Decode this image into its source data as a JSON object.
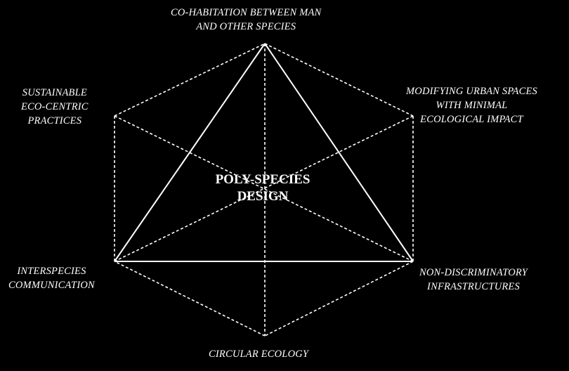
{
  "colors": {
    "background": "#000000",
    "lines": "#ffffff",
    "text": "#ffffff"
  },
  "center": {
    "line1": "POLY-SPECIES",
    "line2": "DESIGN"
  },
  "nodes": {
    "top": {
      "line1": "CO-HABITATION BETWEEN MAN",
      "line2": "AND OTHER SPECIES"
    },
    "upper_left": {
      "line1": "SUSTAINABLE",
      "line2": "ECO-CENTRIC",
      "line3": "PRACTICES"
    },
    "upper_right": {
      "line1": "MODIFYING URBAN SPACES",
      "line2": "WITH MINIMAL",
      "line3": "ECOLOGICAL IMPACT"
    },
    "lower_left": {
      "line1": "INTERSPECIES",
      "line2": "COMMUNICATION"
    },
    "lower_right": {
      "line1": "NON-DISCRIMINATORY",
      "line2": "INFRASTRUCTURES"
    },
    "bottom": {
      "line1": "CIRCULAR ECOLOGY"
    }
  }
}
